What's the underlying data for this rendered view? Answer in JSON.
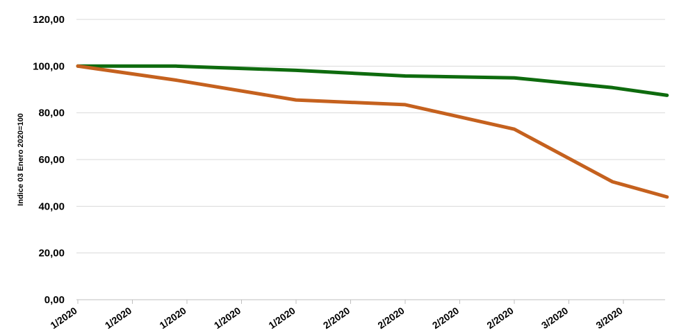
{
  "chart_data": {
    "type": "line",
    "title": "",
    "xlabel": "",
    "ylabel": "Indice 03 Enero 2020=100",
    "ylim": [
      0,
      120
    ],
    "yticks": [
      "0,00",
      "20,00",
      "40,00",
      "60,00",
      "80,00",
      "100,00",
      "120,00"
    ],
    "x": [
      "1/2020",
      "1/2020",
      "1/2020",
      "1/2020",
      "1/2020",
      "2/2020",
      "2/2020",
      "2/2020",
      "2/2020",
      "3/2020",
      "3/2020"
    ],
    "grid": true,
    "legend": "none",
    "series": [
      {
        "color": "#0e6b0e",
        "points": [
          [
            0,
            100
          ],
          [
            1.8,
            100
          ],
          [
            4,
            98.2
          ],
          [
            6,
            95.8
          ],
          [
            8,
            95
          ],
          [
            9.8,
            90.8
          ],
          [
            10.8,
            87.5
          ]
        ]
      },
      {
        "color": "#c5611e",
        "points": [
          [
            0,
            100
          ],
          [
            1.8,
            94
          ],
          [
            4,
            85.5
          ],
          [
            6,
            83.5
          ],
          [
            8,
            73
          ],
          [
            9.8,
            50.5
          ],
          [
            10.8,
            44
          ]
        ]
      }
    ]
  }
}
